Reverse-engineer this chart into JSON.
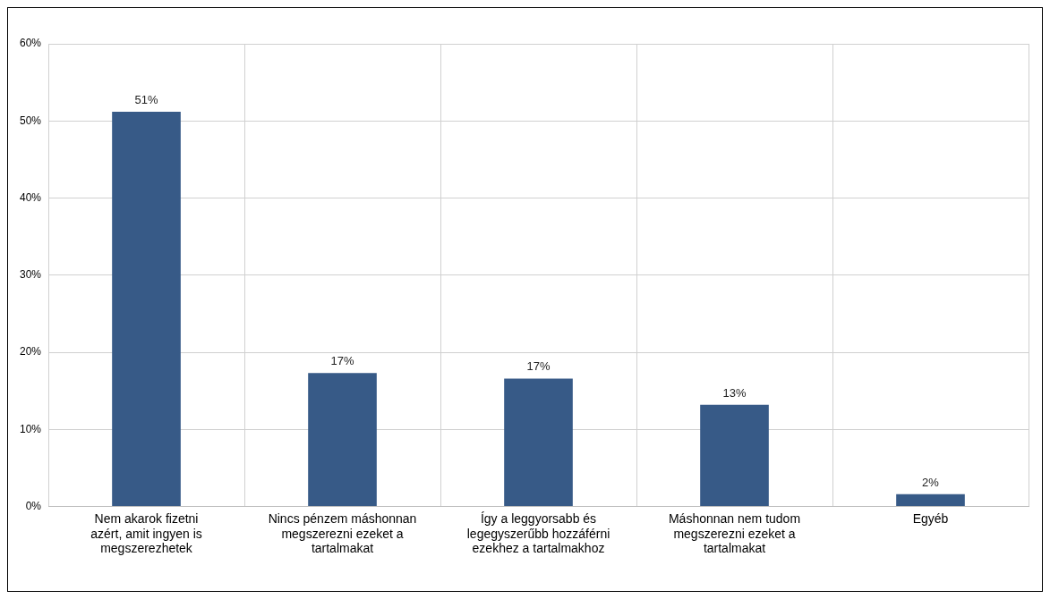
{
  "chart_data": {
    "type": "bar",
    "categories": [
      "Nem akarok fizetni azért, amit ingyen is megszerezhetek",
      "Nincs pénzem máshonnan megszerezni ezeket a tartalmakat",
      "Így a leggyorsabb és legegyszerűbb hozzáférni ezekhez a tartalmakhoz",
      "Máshonnan nem tudom megszerezni ezeket a tartalmakat",
      "Egyéb"
    ],
    "values": [
      51.2,
      17.3,
      16.6,
      13.2,
      1.6
    ],
    "value_labels": [
      "51%",
      "17%",
      "17%",
      "13%",
      "2%"
    ],
    "color": "#375a87",
    "ylim": [
      0,
      60
    ],
    "yticks": [
      {
        "value": 0,
        "label": "0%"
      },
      {
        "value": 10,
        "label": "10%"
      },
      {
        "value": 20,
        "label": "20%"
      },
      {
        "value": 30,
        "label": "30%"
      },
      {
        "value": 40,
        "label": "40%"
      },
      {
        "value": 50,
        "label": "50%"
      },
      {
        "value": 60,
        "label": "60%"
      }
    ],
    "grid": true,
    "legend": false
  }
}
